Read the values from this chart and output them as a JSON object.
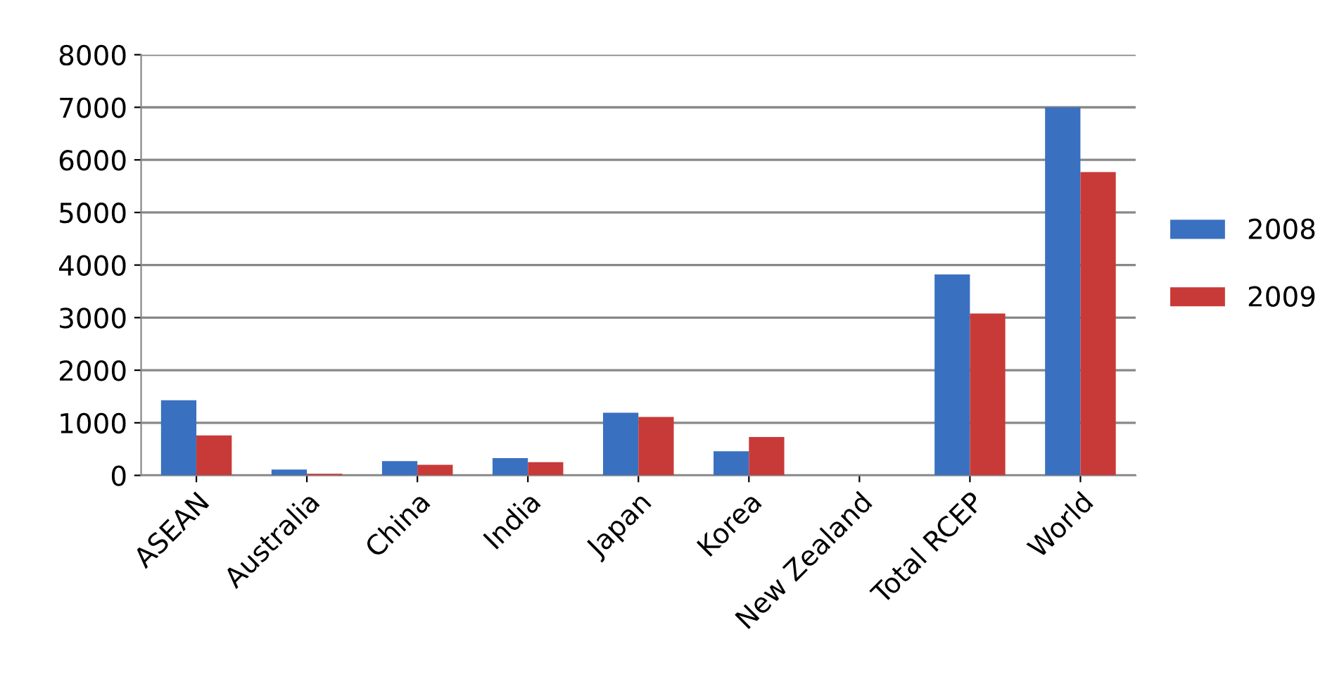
{
  "chart_data": {
    "type": "bar",
    "categories": [
      "ASEAN",
      "Australia",
      "China",
      "India",
      "Japan",
      "Korea",
      "New Zealand",
      "Total RCEP",
      "World"
    ],
    "series": [
      {
        "name": "2008",
        "color": "#3a70c0",
        "values": [
          1430,
          110,
          270,
          330,
          1190,
          460,
          null,
          3820,
          7000
        ]
      },
      {
        "name": "2009",
        "color": "#c83a38",
        "values": [
          760,
          30,
          200,
          250,
          1110,
          730,
          null,
          3080,
          5770
        ]
      }
    ],
    "ylim": [
      0,
      8000
    ],
    "yticks": [
      0,
      1000,
      2000,
      3000,
      4000,
      5000,
      6000,
      7000,
      8000
    ],
    "grid": "y",
    "legend": "right"
  }
}
